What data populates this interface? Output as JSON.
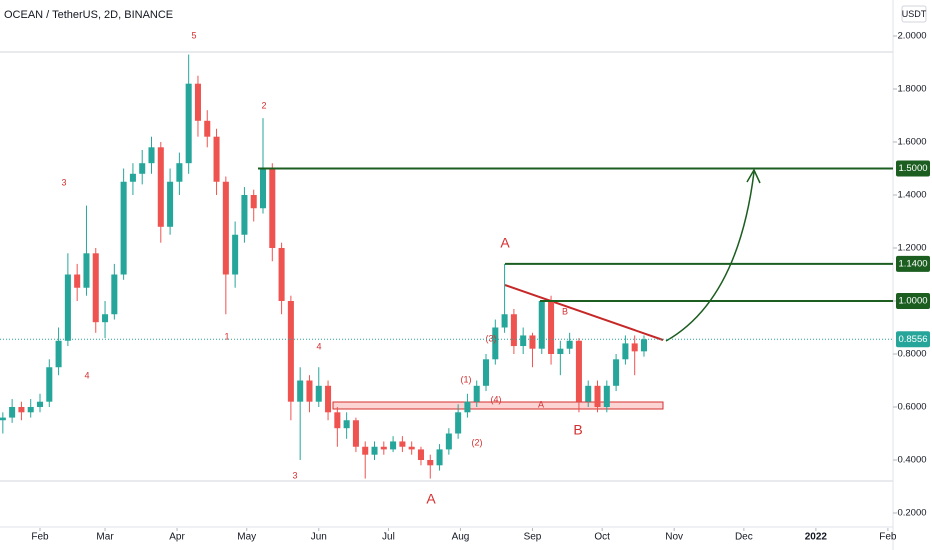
{
  "chart_data": {
    "type": "candlestick",
    "title": "OCEAN / TetherUS, 2D, BINANCE",
    "currency": "USDT",
    "x": [
      15,
      19,
      23,
      27,
      31,
      35,
      39,
      43,
      47,
      51,
      55,
      59,
      63,
      67,
      71,
      75,
      79,
      83,
      87,
      91,
      95,
      99,
      103,
      107,
      111,
      115,
      119,
      123,
      127,
      131,
      135,
      139,
      143,
      147,
      151,
      155,
      159,
      163,
      167,
      171,
      175,
      179,
      183,
      187,
      191,
      195,
      199,
      203,
      207,
      211,
      215,
      219,
      223,
      227,
      231,
      235,
      239,
      243,
      247,
      251,
      255,
      259,
      263,
      267,
      271,
      275,
      279,
      283,
      287,
      291
    ],
    "open": [
      0.55,
      0.56,
      0.6,
      0.58,
      0.6,
      0.62,
      0.75,
      0.85,
      1.1,
      1.05,
      1.18,
      0.92,
      0.95,
      1.1,
      1.45,
      1.48,
      1.52,
      1.58,
      1.28,
      1.45,
      1.52,
      1.82,
      1.68,
      1.62,
      1.45,
      1.1,
      1.25,
      1.4,
      1.35,
      1.5,
      1.2,
      1.0,
      0.62,
      0.7,
      0.62,
      0.68,
      0.58,
      0.52,
      0.55,
      0.45,
      0.42,
      0.45,
      0.44,
      0.47,
      0.45,
      0.44,
      0.4,
      0.38,
      0.44,
      0.5,
      0.58,
      0.62,
      0.68,
      0.78,
      0.9,
      0.95,
      0.83,
      0.87,
      0.82,
      1.0,
      0.8,
      0.82,
      0.85,
      0.62,
      0.68,
      0.6,
      0.68,
      0.78,
      0.84,
      0.81
    ],
    "high": [
      0.58,
      0.63,
      0.62,
      0.63,
      0.65,
      0.78,
      0.9,
      1.18,
      1.14,
      1.36,
      1.2,
      1.0,
      1.14,
      1.5,
      1.52,
      1.57,
      1.62,
      1.6,
      1.5,
      1.56,
      1.93,
      1.85,
      1.72,
      1.65,
      1.47,
      1.3,
      1.43,
      1.42,
      1.69,
      1.52,
      1.22,
      1.02,
      0.75,
      0.72,
      0.75,
      0.7,
      0.6,
      0.58,
      0.56,
      0.47,
      0.47,
      0.47,
      0.49,
      0.49,
      0.47,
      0.45,
      0.42,
      0.46,
      0.52,
      0.61,
      0.65,
      0.7,
      0.8,
      0.93,
      1.14,
      0.97,
      0.9,
      0.88,
      1.0,
      1.02,
      0.85,
      0.88,
      0.86,
      0.7,
      0.7,
      0.7,
      0.8,
      0.87,
      0.87,
      0.87
    ],
    "low": [
      0.5,
      0.54,
      0.55,
      0.56,
      0.58,
      0.6,
      0.72,
      0.83,
      1.0,
      1.02,
      0.88,
      0.86,
      0.93,
      1.08,
      1.4,
      1.44,
      1.48,
      1.22,
      1.25,
      1.4,
      1.48,
      1.62,
      1.58,
      1.4,
      0.95,
      1.05,
      1.22,
      1.3,
      1.33,
      1.15,
      0.95,
      0.55,
      0.4,
      0.58,
      0.6,
      0.55,
      0.45,
      0.48,
      0.43,
      0.33,
      0.4,
      0.42,
      0.43,
      0.43,
      0.42,
      0.38,
      0.33,
      0.36,
      0.42,
      0.48,
      0.56,
      0.6,
      0.66,
      0.76,
      0.88,
      0.8,
      0.8,
      0.75,
      0.8,
      0.76,
      0.72,
      0.8,
      0.58,
      0.6,
      0.58,
      0.58,
      0.66,
      0.76,
      0.72,
      0.79
    ],
    "close": [
      0.56,
      0.6,
      0.58,
      0.6,
      0.62,
      0.75,
      0.85,
      1.1,
      1.05,
      1.18,
      0.92,
      0.95,
      1.1,
      1.45,
      1.48,
      1.52,
      1.58,
      1.28,
      1.45,
      1.52,
      1.82,
      1.68,
      1.62,
      1.45,
      1.1,
      1.25,
      1.4,
      1.35,
      1.5,
      1.2,
      1.0,
      0.62,
      0.7,
      0.62,
      0.68,
      0.58,
      0.52,
      0.55,
      0.45,
      0.42,
      0.45,
      0.44,
      0.47,
      0.45,
      0.44,
      0.4,
      0.38,
      0.44,
      0.5,
      0.58,
      0.62,
      0.68,
      0.78,
      0.9,
      0.95,
      0.83,
      0.87,
      0.82,
      1.0,
      0.8,
      0.82,
      0.85,
      0.62,
      0.68,
      0.6,
      0.68,
      0.78,
      0.84,
      0.81,
      0.8556
    ],
    "up_color": "#26a69a",
    "down_color": "#ef5350",
    "xlim": [
      13.78,
      398.2
    ],
    "ylim": [
      0.1434,
      2.1358
    ],
    "xticks": [
      {
        "value": 31,
        "label": "Feb"
      },
      {
        "value": 59,
        "label": "Mar"
      },
      {
        "value": 90,
        "label": "Apr"
      },
      {
        "value": 120,
        "label": "May"
      },
      {
        "value": 151,
        "label": "Jun"
      },
      {
        "value": 181,
        "label": "Jul"
      },
      {
        "value": 212,
        "label": "Aug"
      },
      {
        "value": 243,
        "label": "Sep"
      },
      {
        "value": 273,
        "label": "Oct"
      },
      {
        "value": 304,
        "label": "Nov"
      },
      {
        "value": 334,
        "label": "Dec"
      },
      {
        "value": 365,
        "label": "2022"
      },
      {
        "value": 396,
        "label": "Feb"
      }
    ],
    "yticks": [
      {
        "value": 2.0,
        "label": "2.0000"
      },
      {
        "value": 1.8,
        "label": "1.8000"
      },
      {
        "value": 1.6,
        "label": "1.6000"
      },
      {
        "value": 1.4,
        "label": "1.4000"
      },
      {
        "value": 1.2,
        "label": "1.2000"
      },
      {
        "value": 1.0,
        "label": "1.0000"
      },
      {
        "value": 0.8,
        "label": "0.8000"
      },
      {
        "value": 0.6,
        "label": "0.6000"
      },
      {
        "value": 0.4,
        "label": "0.4000"
      },
      {
        "value": 0.2,
        "label": "0.2000"
      }
    ],
    "levels": [
      {
        "value": 1.5,
        "label": "1.5000"
      },
      {
        "value": 1.14,
        "label": "1.1400"
      },
      {
        "value": 1.0,
        "label": "1.0000"
      }
    ],
    "level_color": "#1b5e20",
    "annotations": [
      "5",
      "3",
      "2",
      "1",
      "4",
      "4",
      "3",
      "A",
      "(3)",
      "(1)",
      "(4)",
      "(2)",
      "B",
      "A",
      "B",
      "A"
    ]
  }
}
